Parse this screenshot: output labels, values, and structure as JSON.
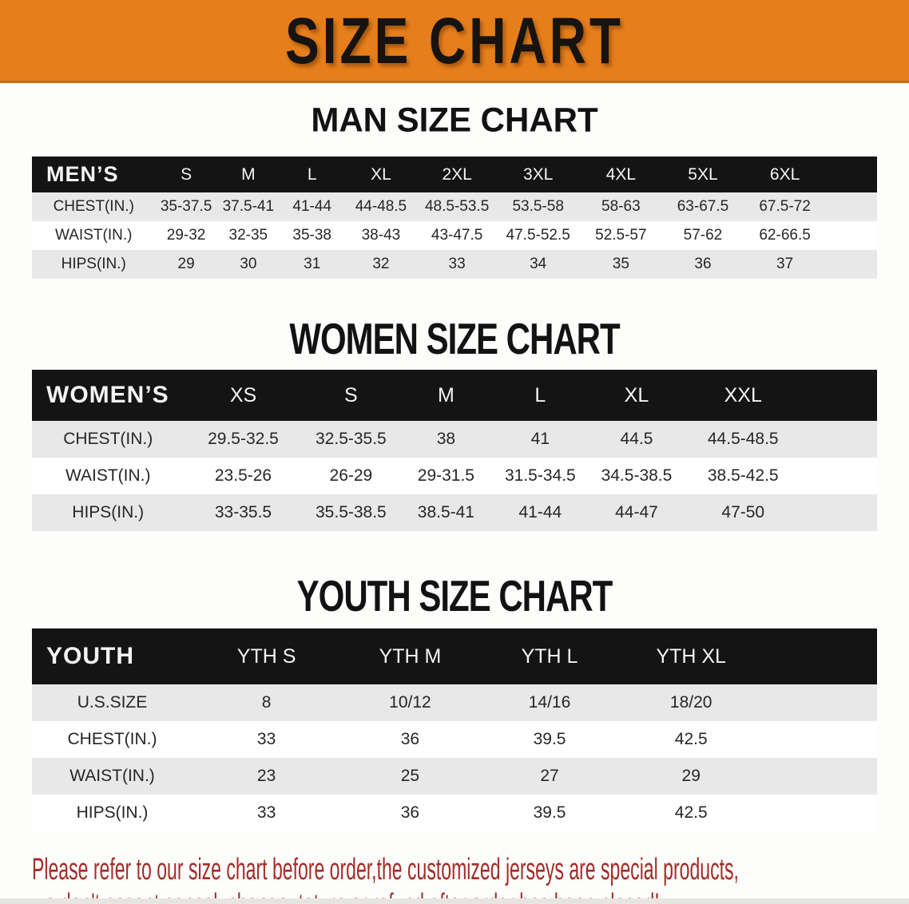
{
  "colors": {
    "banner_bg": "#E67E1B",
    "band_bg": "#141414",
    "row_alt_bg": "#E8E8E8",
    "disclaimer_red": "#A32C28"
  },
  "banner": {
    "title": "SIZE CHART"
  },
  "sections": {
    "men": {
      "heading": "MAN SIZE CHART",
      "band_label": "MEN’S",
      "sizes": [
        "S",
        "M",
        "L",
        "XL",
        "2XL",
        "3XL",
        "4XL",
        "5XL",
        "6XL"
      ],
      "rows": [
        {
          "label": "CHEST(IN.)",
          "values": [
            "35-37.5",
            "37.5-41",
            "41-44",
            "44-48.5",
            "48.5-53.5",
            "53.5-58",
            "58-63",
            "63-67.5",
            "67.5-72"
          ]
        },
        {
          "label": "WAIST(IN.)",
          "values": [
            "29-32",
            "32-35",
            "35-38",
            "38-43",
            "43-47.5",
            "47.5-52.5",
            "52.5-57",
            "57-62",
            "62-66.5"
          ]
        },
        {
          "label": "HIPS(IN.)",
          "values": [
            "29",
            "30",
            "31",
            "32",
            "33",
            "34",
            "35",
            "36",
            "37"
          ]
        }
      ]
    },
    "women": {
      "heading": "WOMEN SIZE CHART",
      "band_label": "WOMEN’S",
      "sizes": [
        "XS",
        "S",
        "M",
        "L",
        "XL",
        "XXL"
      ],
      "rows": [
        {
          "label": "CHEST(IN.)",
          "values": [
            "29.5-32.5",
            "32.5-35.5",
            "38",
            "41",
            "44.5",
            "44.5-48.5"
          ]
        },
        {
          "label": "WAIST(IN.)",
          "values": [
            "23.5-26",
            "26-29",
            "29-31.5",
            "31.5-34.5",
            "34.5-38.5",
            "38.5-42.5"
          ]
        },
        {
          "label": "HIPS(IN.)",
          "values": [
            "33-35.5",
            "35.5-38.5",
            "38.5-41",
            "41-44",
            "44-47",
            "47-50"
          ]
        }
      ]
    },
    "youth": {
      "heading": "YOUTH SIZE CHART",
      "band_label": "YOUTH",
      "sizes": [
        "YTH S",
        "YTH M",
        "YTH L",
        "YTH XL"
      ],
      "rows": [
        {
          "label": "U.S.SIZE",
          "values": [
            "8",
            "10/12",
            "14/16",
            "18/20"
          ]
        },
        {
          "label": "CHEST(IN.)",
          "values": [
            "33",
            "36",
            "39.5",
            "42.5"
          ]
        },
        {
          "label": "WAIST(IN.)",
          "values": [
            "23",
            "25",
            "27",
            "29"
          ]
        },
        {
          "label": "HIPS(IN.)",
          "values": [
            "33",
            "36",
            "39.5",
            "42.5"
          ]
        }
      ]
    }
  },
  "disclaimer": {
    "line1": "Please refer to our size chart before order,the customized jerseys are special products,",
    "line2": "we don't accept cancel, change, teturn or refund after order has been placed!"
  }
}
